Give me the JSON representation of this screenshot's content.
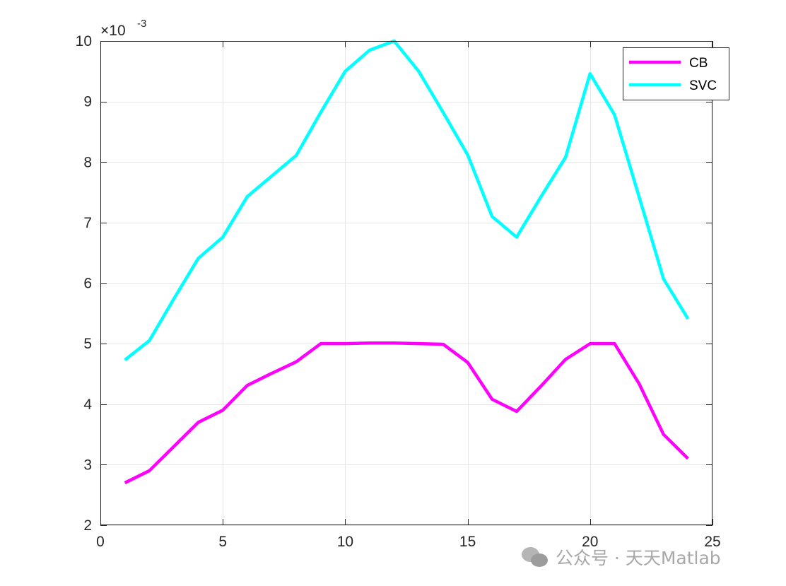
{
  "chart_data": {
    "type": "line",
    "title": "",
    "xlabel": "",
    "ylabel": "",
    "xlim": [
      0,
      25
    ],
    "ylim": [
      2,
      10
    ],
    "xticks": [
      0,
      5,
      10,
      15,
      20,
      25
    ],
    "yticks": [
      2,
      3,
      4,
      5,
      6,
      7,
      8,
      9,
      10
    ],
    "y_exponent_label": "×10",
    "y_exponent_power": "-3",
    "grid": true,
    "legend_position": "top-right",
    "x": [
      1,
      2,
      3,
      4,
      5,
      6,
      7,
      8,
      9,
      10,
      11,
      12,
      13,
      14,
      15,
      16,
      17,
      18,
      19,
      20,
      21,
      22,
      23,
      24
    ],
    "series": [
      {
        "name": "CB",
        "color": "#ff00ff",
        "values": [
          2.7,
          2.9,
          3.3,
          3.7,
          3.9,
          4.31,
          4.51,
          4.7,
          5.0,
          5.0,
          5.01,
          5.01,
          5.0,
          4.99,
          4.69,
          4.08,
          3.88,
          4.3,
          4.74,
          5.0,
          5.0,
          4.34,
          3.5,
          3.1
        ]
      },
      {
        "name": "SVC",
        "color": "#00ffff",
        "values": [
          4.73,
          5.05,
          5.74,
          6.41,
          6.76,
          7.43,
          7.77,
          8.11,
          8.82,
          9.5,
          9.85,
          10.0,
          9.5,
          8.82,
          8.12,
          7.1,
          6.76,
          7.43,
          8.08,
          9.46,
          8.78,
          7.43,
          6.07,
          5.41
        ]
      }
    ]
  },
  "watermark": {
    "icon": "wechat-icon",
    "text": "公众号 · 天天Matlab"
  }
}
